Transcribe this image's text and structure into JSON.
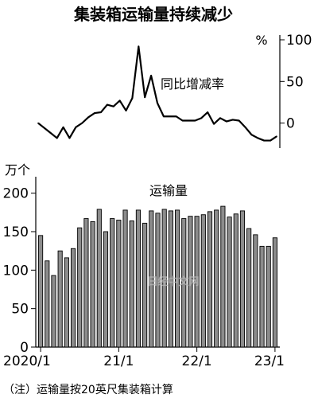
{
  "chart_data": [
    {
      "type": "line",
      "title": "集装箱运输量持续减少",
      "unit": "%",
      "series": [
        {
          "name": "同比增减率",
          "values": [
            0,
            -6,
            -12,
            -18,
            -5,
            -18,
            -5,
            0,
            7,
            12,
            13,
            22,
            20,
            27,
            15,
            30,
            92,
            31,
            57,
            24,
            8,
            8,
            8,
            3,
            3,
            3,
            6,
            13,
            -1,
            6,
            2,
            4,
            3,
            -5,
            -14,
            -18,
            -21,
            -21,
            -16
          ]
        }
      ],
      "ylim": [
        -30,
        100
      ],
      "yticks": [
        "100",
        "50",
        "0"
      ],
      "ytick_values": [
        100,
        50,
        0
      ]
    },
    {
      "type": "bar",
      "unit": "万个",
      "series": [
        {
          "name": "运输量",
          "values": [
            145,
            112,
            93,
            125,
            116,
            128,
            155,
            167,
            163,
            179,
            150,
            167,
            165,
            178,
            164,
            178,
            161,
            177,
            174,
            179,
            177,
            178,
            167,
            170,
            170,
            172,
            176,
            178,
            183,
            169,
            173,
            177,
            154,
            146,
            131,
            131,
            142
          ]
        }
      ],
      "ylim": [
        0,
        210
      ],
      "yticks": [
        "200",
        "150",
        "100",
        "50",
        "0"
      ],
      "ytick_values": [
        200,
        150,
        100,
        50,
        0
      ],
      "xticks": [
        "2020/1",
        "21/1",
        "22/1",
        "23/1"
      ],
      "xtick_indices": [
        0,
        12,
        24,
        36
      ]
    }
  ],
  "footnote": "（注）运输量按20英尺集装箱计算",
  "watermark": "日经中文网",
  "colors": {
    "bar_fill": "#8c8c8c",
    "bar_stroke": "#000000",
    "line": "#000000",
    "watermark": "#b8b8b8"
  }
}
